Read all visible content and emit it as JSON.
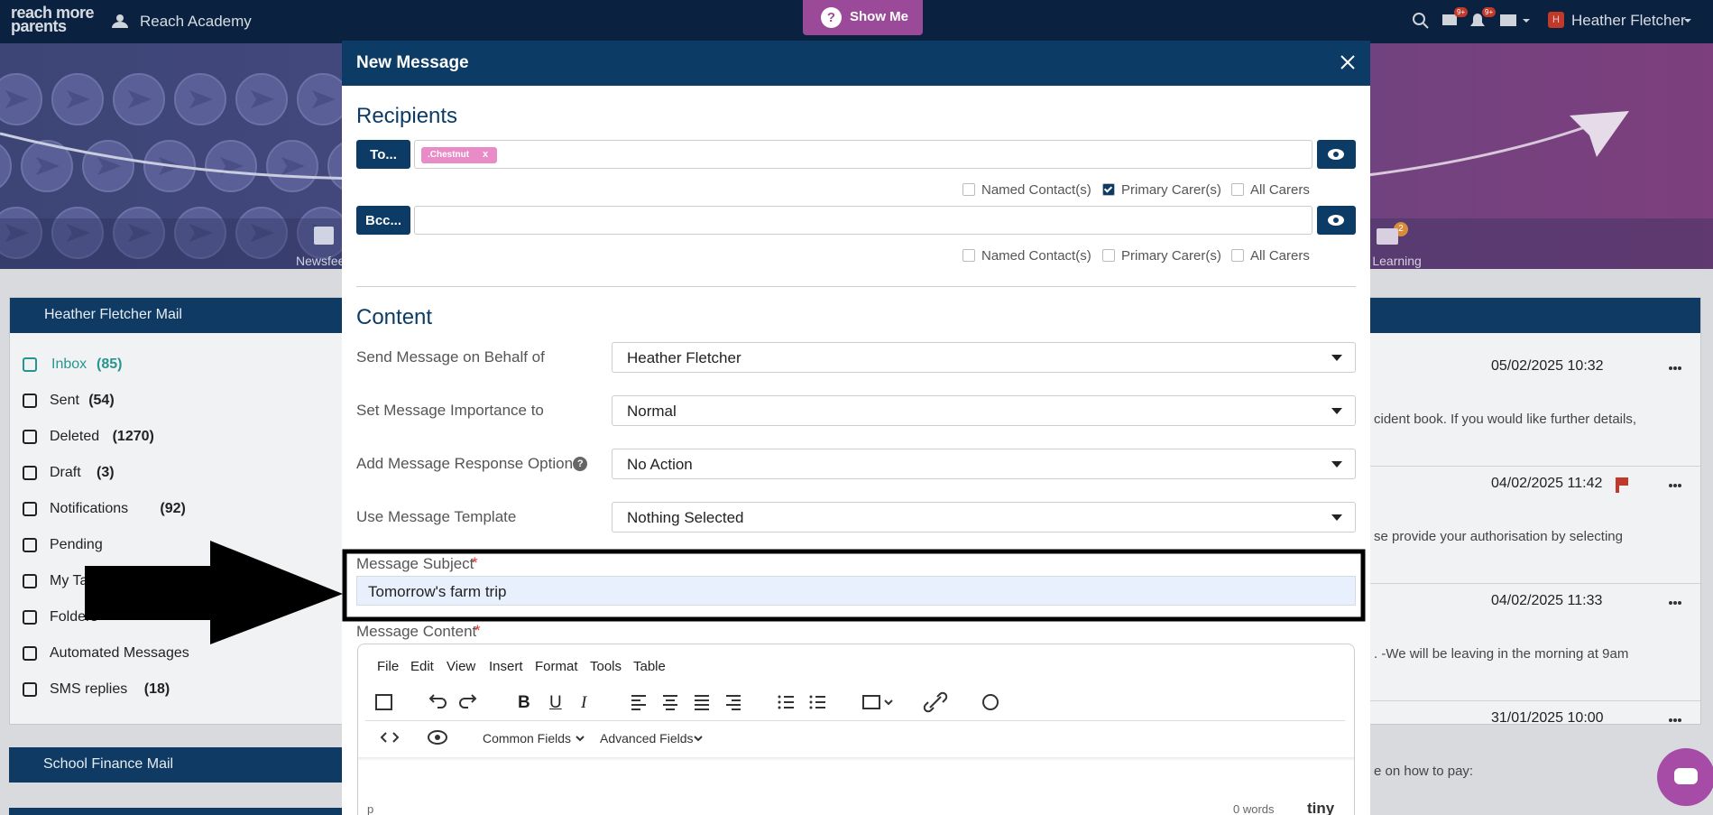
{
  "header": {
    "logo": [
      "reach more",
      "parents"
    ],
    "school": "Reach Academy",
    "show_me_icon": "?",
    "show_me": "Show Me",
    "badges": [
      "9+",
      "9+"
    ],
    "user_initial": "H",
    "user": "Heather Fletcher"
  },
  "banner_nav": [
    {
      "label": "Newsfeed"
    },
    {
      "label": "Online Learning",
      "badge": "2"
    }
  ],
  "mailbox": {
    "title": "Heather Fletcher Mail",
    "items": [
      {
        "label": "Inbox",
        "count": "(85)",
        "active": true
      },
      {
        "label": "Sent",
        "count": "(54)"
      },
      {
        "label": "Deleted",
        "count": "(1270)"
      },
      {
        "label": "Draft",
        "count": "(3)"
      },
      {
        "label": "Notifications",
        "count": "(92)"
      },
      {
        "label": "Pending"
      },
      {
        "label": "My Tags"
      },
      {
        "label": "Folders"
      },
      {
        "label": "Automated Messages"
      },
      {
        "label": "SMS replies",
        "count": "(18)"
      }
    ],
    "second_title": "School Finance Mail"
  },
  "messages": [
    {
      "date": "05/02/2025 10:32",
      "snippet": "cident book. If you would like further details,"
    },
    {
      "date": "04/02/2025 11:42",
      "snippet": "se provide your authorisation by selecting",
      "flagged": true
    },
    {
      "date": "04/02/2025 11:33",
      "snippet": ". -We will be leaving in the morning at 9am"
    },
    {
      "date": "31/01/2025 10:00",
      "snippet": "e on how to pay:"
    }
  ],
  "modal": {
    "title": "New Message",
    "recipients": {
      "heading": "Recipients",
      "to": {
        "button": "To...",
        "chips": [
          {
            "label": ".Chestnut",
            "remove": "x"
          }
        ],
        "options": [
          {
            "label": "Named Contact(s)",
            "checked": false
          },
          {
            "label": "Primary Carer(s)",
            "checked": true
          },
          {
            "label": "All Carers",
            "checked": false
          }
        ]
      },
      "bcc": {
        "button": "Bcc...",
        "chips": [],
        "options": [
          {
            "label": "Named Contact(s)",
            "checked": false
          },
          {
            "label": "Primary Carer(s)",
            "checked": false
          },
          {
            "label": "All Carers",
            "checked": false
          }
        ]
      }
    },
    "content": {
      "heading": "Content",
      "fields": [
        {
          "label": "Send Message on Behalf of",
          "value": "Heather Fletcher"
        },
        {
          "label": "Set Message Importance to",
          "value": "Normal"
        },
        {
          "label": "Add Message Response Option",
          "value": "No Action",
          "help": "?"
        },
        {
          "label": "Use Message Template",
          "value": "Nothing Selected"
        }
      ],
      "subject": {
        "label": "Message Subject",
        "required": "*",
        "value": "Tomorrow's farm trip"
      },
      "message_content": {
        "label": "Message Content",
        "required": "*"
      },
      "editor": {
        "menu": [
          "File",
          "Edit",
          "View",
          "Insert",
          "Format",
          "Tools",
          "Table"
        ],
        "format_buttons": [
          "B",
          "U",
          "I"
        ],
        "dropdowns": [
          "Common Fields",
          "Advanced Fields"
        ],
        "status_path": "p",
        "word_count": "0 words",
        "brand": "tiny"
      }
    }
  }
}
